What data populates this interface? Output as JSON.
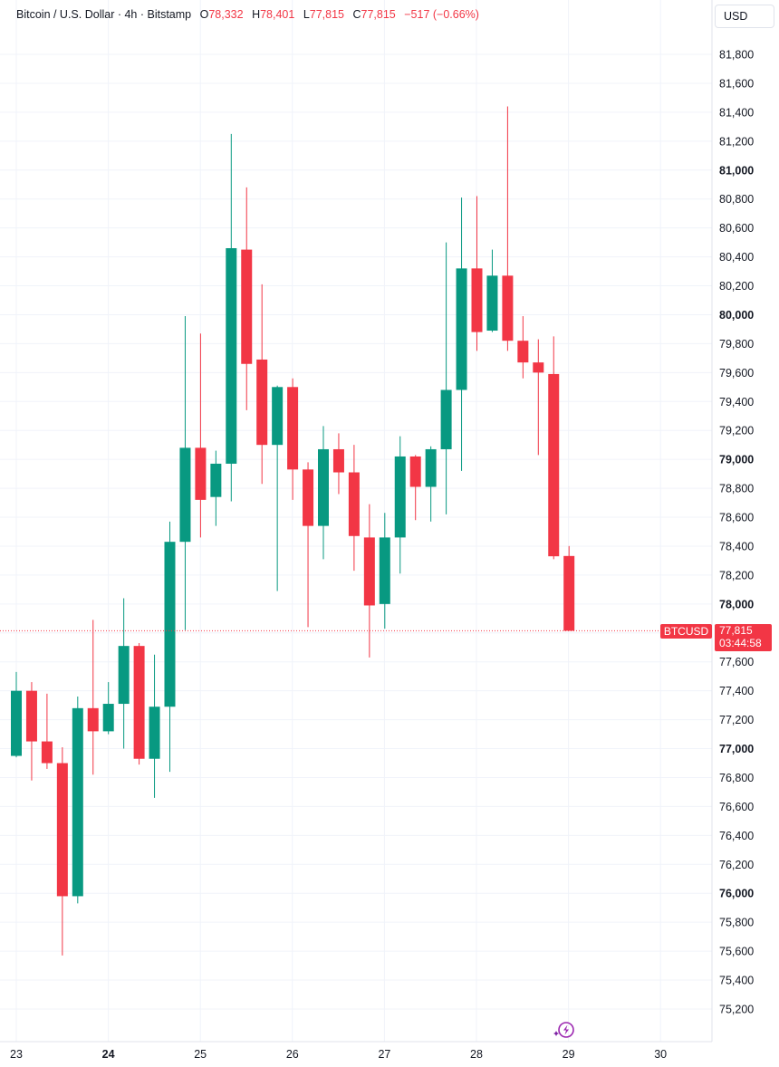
{
  "header": {
    "symbol_info": "Bitcoin / U.S. Dollar · 4h · Bitstamp",
    "o_label": "O",
    "o_value": "78,332",
    "h_label": "H",
    "h_value": "78,401",
    "l_label": "L",
    "l_value": "77,815",
    "c_label": "C",
    "c_value": "77,815",
    "change": "−517 (−0.66%)"
  },
  "currency_button": "USD",
  "price_label": {
    "symbol": "BTCUSD",
    "price": "77,815",
    "countdown": "03:44:58"
  },
  "colors": {
    "up": "#089981",
    "down": "#f23645",
    "grid": "#f0f3fa",
    "text": "#131722"
  },
  "icons": {
    "bolt": "lightning-bolt-icon"
  },
  "chart_data": {
    "type": "candlestick",
    "x_ticks": [
      "23",
      "24",
      "25",
      "26",
      "27",
      "28",
      "29",
      "30"
    ],
    "x_ticks_bold": [
      "24"
    ],
    "y_ticks": [
      "75,200",
      "75,400",
      "75,600",
      "75,800",
      "76,000",
      "76,200",
      "76,400",
      "76,600",
      "76,800",
      "77,000",
      "77,200",
      "77,400",
      "77,600",
      "78,000",
      "78,200",
      "78,400",
      "78,600",
      "78,800",
      "79,000",
      "79,200",
      "79,400",
      "79,600",
      "79,800",
      "80,000",
      "80,200",
      "80,400",
      "80,600",
      "80,800",
      "81,000",
      "81,200",
      "81,400",
      "81,600",
      "81,800"
    ],
    "y_ticks_bold": [
      "76,000",
      "77,000",
      "78,000",
      "79,000",
      "80,000",
      "81,000"
    ],
    "ylim": [
      75050,
      81950
    ],
    "last_price": 77815,
    "candles": [
      {
        "o": 76950,
        "h": 77530,
        "l": 76940,
        "c": 77400
      },
      {
        "o": 77400,
        "h": 77460,
        "l": 76780,
        "c": 77050
      },
      {
        "o": 77050,
        "h": 77380,
        "l": 76860,
        "c": 76900
      },
      {
        "o": 76900,
        "h": 77010,
        "l": 75570,
        "c": 75980
      },
      {
        "o": 75980,
        "h": 77360,
        "l": 75930,
        "c": 77280
      },
      {
        "o": 77280,
        "h": 77890,
        "l": 76820,
        "c": 77120
      },
      {
        "o": 77120,
        "h": 77460,
        "l": 77100,
        "c": 77310
      },
      {
        "o": 77310,
        "h": 78040,
        "l": 77000,
        "c": 77710
      },
      {
        "o": 77710,
        "h": 77730,
        "l": 76890,
        "c": 76930
      },
      {
        "o": 76930,
        "h": 77650,
        "l": 76660,
        "c": 77290
      },
      {
        "o": 77290,
        "h": 78570,
        "l": 76840,
        "c": 78430
      },
      {
        "o": 78430,
        "h": 79990,
        "l": 77820,
        "c": 79080
      },
      {
        "o": 79080,
        "h": 79870,
        "l": 78460,
        "c": 78720
      },
      {
        "o": 78740,
        "h": 79060,
        "l": 78540,
        "c": 78970
      },
      {
        "o": 78970,
        "h": 81250,
        "l": 78710,
        "c": 80460
      },
      {
        "o": 80450,
        "h": 80880,
        "l": 79340,
        "c": 79660
      },
      {
        "o": 79690,
        "h": 80210,
        "l": 78830,
        "c": 79100
      },
      {
        "o": 79100,
        "h": 79510,
        "l": 78090,
        "c": 79500
      },
      {
        "o": 79500,
        "h": 79560,
        "l": 78720,
        "c": 78930
      },
      {
        "o": 78930,
        "h": 78980,
        "l": 77840,
        "c": 78540
      },
      {
        "o": 78540,
        "h": 79230,
        "l": 78310,
        "c": 79070
      },
      {
        "o": 79070,
        "h": 79180,
        "l": 78760,
        "c": 78910
      },
      {
        "o": 78910,
        "h": 79100,
        "l": 78230,
        "c": 78470
      },
      {
        "o": 78460,
        "h": 78690,
        "l": 77630,
        "c": 77990
      },
      {
        "o": 78000,
        "h": 78630,
        "l": 77830,
        "c": 78460
      },
      {
        "o": 78460,
        "h": 79160,
        "l": 78210,
        "c": 79020
      },
      {
        "o": 79020,
        "h": 79030,
        "l": 78580,
        "c": 78810
      },
      {
        "o": 78810,
        "h": 79090,
        "l": 78570,
        "c": 79070
      },
      {
        "o": 79070,
        "h": 80500,
        "l": 78620,
        "c": 79480
      },
      {
        "o": 79480,
        "h": 80810,
        "l": 78920,
        "c": 80320
      },
      {
        "o": 80320,
        "h": 80820,
        "l": 79750,
        "c": 79880
      },
      {
        "o": 79890,
        "h": 80450,
        "l": 79880,
        "c": 80270
      },
      {
        "o": 80270,
        "h": 81440,
        "l": 79750,
        "c": 79820
      },
      {
        "o": 79820,
        "h": 79990,
        "l": 79560,
        "c": 79670
      },
      {
        "o": 79670,
        "h": 79830,
        "l": 79030,
        "c": 79600
      },
      {
        "o": 79590,
        "h": 79850,
        "l": 78310,
        "c": 78330
      },
      {
        "o": 78332,
        "h": 78401,
        "l": 77815,
        "c": 77815
      }
    ]
  }
}
